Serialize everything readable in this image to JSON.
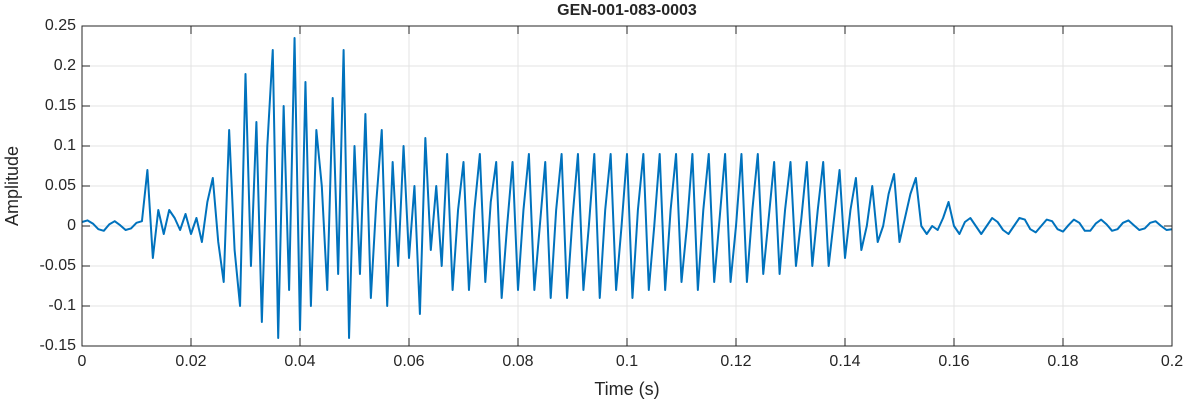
{
  "chart_data": {
    "type": "line",
    "title": "GEN-001-083-0003",
    "x_label": "Time (s)",
    "y_label": "Amplitude",
    "x": [
      0,
      0.001,
      0.002,
      0.003,
      0.004,
      0.005,
      0.006,
      0.007,
      0.008,
      0.009,
      0.01,
      0.011,
      0.012,
      0.013,
      0.014,
      0.015,
      0.016,
      0.017,
      0.018,
      0.019,
      0.02,
      0.021,
      0.022,
      0.023,
      0.024,
      0.025,
      0.026,
      0.027,
      0.028,
      0.029,
      0.03,
      0.031,
      0.032,
      0.033,
      0.034,
      0.035,
      0.036,
      0.037,
      0.038,
      0.039,
      0.04,
      0.041,
      0.042,
      0.043,
      0.044,
      0.045,
      0.046,
      0.047,
      0.048,
      0.049,
      0.05,
      0.051,
      0.052,
      0.053,
      0.054,
      0.055,
      0.056,
      0.057,
      0.058,
      0.059,
      0.06,
      0.061,
      0.062,
      0.063,
      0.064,
      0.065,
      0.066,
      0.067,
      0.068,
      0.069,
      0.07,
      0.071,
      0.072,
      0.073,
      0.074,
      0.075,
      0.076,
      0.077,
      0.078,
      0.079,
      0.08,
      0.081,
      0.082,
      0.083,
      0.084,
      0.085,
      0.086,
      0.087,
      0.088,
      0.089,
      0.09,
      0.091,
      0.092,
      0.093,
      0.094,
      0.095,
      0.096,
      0.097,
      0.098,
      0.099,
      0.1,
      0.101,
      0.102,
      0.103,
      0.104,
      0.105,
      0.106,
      0.107,
      0.108,
      0.109,
      0.11,
      0.111,
      0.112,
      0.113,
      0.114,
      0.115,
      0.116,
      0.117,
      0.118,
      0.119,
      0.12,
      0.121,
      0.122,
      0.123,
      0.124,
      0.125,
      0.126,
      0.127,
      0.128,
      0.129,
      0.13,
      0.131,
      0.132,
      0.133,
      0.134,
      0.135,
      0.136,
      0.137,
      0.138,
      0.139,
      0.14,
      0.141,
      0.142,
      0.143,
      0.144,
      0.145,
      0.146,
      0.147,
      0.148,
      0.149,
      0.15,
      0.151,
      0.152,
      0.153,
      0.154,
      0.155,
      0.156,
      0.157,
      0.158,
      0.159,
      0.16,
      0.161,
      0.162,
      0.163,
      0.164,
      0.165,
      0.166,
      0.167,
      0.168,
      0.169,
      0.17,
      0.171,
      0.172,
      0.173,
      0.174,
      0.175,
      0.176,
      0.177,
      0.178,
      0.179,
      0.18,
      0.181,
      0.182,
      0.183,
      0.184,
      0.185,
      0.186,
      0.187,
      0.188,
      0.189,
      0.19,
      0.191,
      0.192,
      0.193,
      0.194,
      0.195,
      0.196,
      0.197,
      0.198,
      0.199,
      0.2
    ],
    "values": [
      0.005,
      0.007,
      0.003,
      -0.004,
      -0.006,
      0.002,
      0.006,
      0.001,
      -0.005,
      -0.003,
      0.004,
      0.006,
      0.07,
      -0.04,
      0.02,
      -0.01,
      0.02,
      0.01,
      -0.005,
      0.015,
      -0.01,
      0.01,
      -0.02,
      0.03,
      0.06,
      -0.02,
      -0.07,
      0.12,
      -0.03,
      -0.1,
      0.19,
      -0.05,
      0.13,
      -0.12,
      0.1,
      0.22,
      -0.14,
      0.15,
      -0.08,
      0.235,
      -0.13,
      0.18,
      -0.1,
      0.12,
      0.05,
      -0.08,
      0.16,
      -0.06,
      0.22,
      -0.14,
      0.1,
      -0.06,
      0.14,
      -0.09,
      0.03,
      0.12,
      -0.1,
      0.08,
      -0.05,
      0.1,
      -0.04,
      0.05,
      -0.11,
      0.11,
      -0.03,
      0.05,
      -0.05,
      0.09,
      -0.08,
      0.02,
      0.08,
      -0.08,
      0.02,
      0.09,
      -0.07,
      0.03,
      0.08,
      -0.09,
      0,
      0.08,
      -0.08,
      0.02,
      0.09,
      -0.08,
      0,
      0.08,
      -0.09,
      0.02,
      0.09,
      -0.09,
      0.01,
      0.09,
      -0.08,
      0,
      0.09,
      -0.09,
      0.02,
      0.09,
      -0.08,
      0,
      0.09,
      -0.09,
      0.02,
      0.09,
      -0.08,
      0,
      0.09,
      -0.08,
      0.02,
      0.09,
      -0.07,
      0,
      0.09,
      -0.08,
      0.02,
      0.09,
      -0.07,
      0.01,
      0.09,
      -0.07,
      0,
      0.09,
      -0.07,
      0.02,
      0.09,
      -0.06,
      0.01,
      0.08,
      -0.06,
      0.02,
      0.08,
      -0.05,
      0.01,
      0.08,
      -0.05,
      0.02,
      0.08,
      -0.05,
      0.01,
      0.07,
      -0.04,
      0.02,
      0.06,
      -0.03,
      0,
      0.05,
      -0.02,
      0,
      0.04,
      0.065,
      -0.02,
      0.01,
      0.04,
      0.06,
      0,
      -0.01,
      0,
      -0.005,
      0.01,
      0.03,
      0,
      -0.01,
      0.005,
      0.01,
      0,
      -0.01,
      0,
      0.01,
      0.005,
      -0.005,
      -0.01,
      0,
      0.01,
      0.008,
      -0.004,
      -0.008,
      0,
      0.008,
      0.006,
      -0.004,
      -0.007,
      0.001,
      0.008,
      0.004,
      -0.006,
      -0.006,
      0.003,
      0.008,
      0.002,
      -0.006,
      -0.004,
      0.004,
      0.007,
      0.001,
      -0.005,
      -0.003,
      0.004,
      0.006,
      0,
      -0.005,
      -0.004
    ],
    "color": "#0072BD",
    "xlim": [
      0,
      0.2
    ],
    "xticks": [
      0,
      0.02,
      0.04,
      0.06,
      0.08,
      0.1,
      0.12,
      0.14,
      0.16,
      0.18,
      0.2
    ],
    "ylim": [
      -0.15,
      0.25
    ],
    "yticks": [
      -0.15,
      -0.1,
      -0.05,
      0,
      0.05,
      0.1,
      0.15,
      0.2,
      0.25
    ],
    "grid": true
  }
}
